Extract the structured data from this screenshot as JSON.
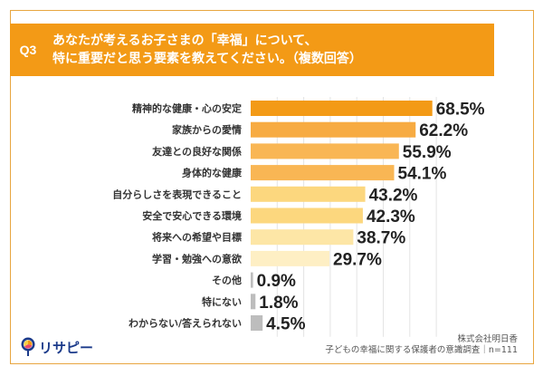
{
  "header": {
    "badge": "Q3",
    "title_line1": "あなたが考えるお子さまの「幸福」について、",
    "title_line2": "特に重要だと思う要素を教えてください。（複数回答）"
  },
  "chart_data": {
    "type": "bar",
    "orientation": "horizontal",
    "title": "あなたが考えるお子さまの「幸福」について、特に重要だと思う要素を教えてください。（複数回答）",
    "categories": [
      "精神的な健康・心の安定",
      "家族からの愛情",
      "友達との良好な関係",
      "身体的な健康",
      "自分らしさを表現できること",
      "安全で安心できる環境",
      "将来への希望や目標",
      "学習・勉強への意欲",
      "その他",
      "特にない",
      "わからない/答えられない"
    ],
    "values": [
      68.5,
      62.2,
      55.9,
      54.1,
      43.2,
      42.3,
      38.7,
      29.7,
      0.9,
      1.8,
      4.5
    ],
    "labels": [
      "68.5%",
      "62.2%",
      "55.9%",
      "54.1%",
      "43.2%",
      "42.3%",
      "38.7%",
      "29.7%",
      "0.9%",
      "1.8%",
      "4.5%"
    ],
    "colors": [
      "#f39a16",
      "#f7ab42",
      "#f9b654",
      "#f9b654",
      "#fcd77e",
      "#fcd77e",
      "#fde6a6",
      "#feefc4",
      "#bdbdbd",
      "#bdbdbd",
      "#bdbdbd"
    ],
    "xlim": [
      0,
      100
    ],
    "grid": true,
    "grid_step": 10,
    "xlabel": "",
    "ylabel": "",
    "unit": "%"
  },
  "footer": {
    "logo_text": "リサピー",
    "source_line1": "株式会社明日香",
    "source_line2": "子どもの幸福に関する保護者の意識調査｜n=111"
  },
  "colors": {
    "accent": "#f39a16",
    "frame": "#e8a640",
    "text": "#222222"
  }
}
